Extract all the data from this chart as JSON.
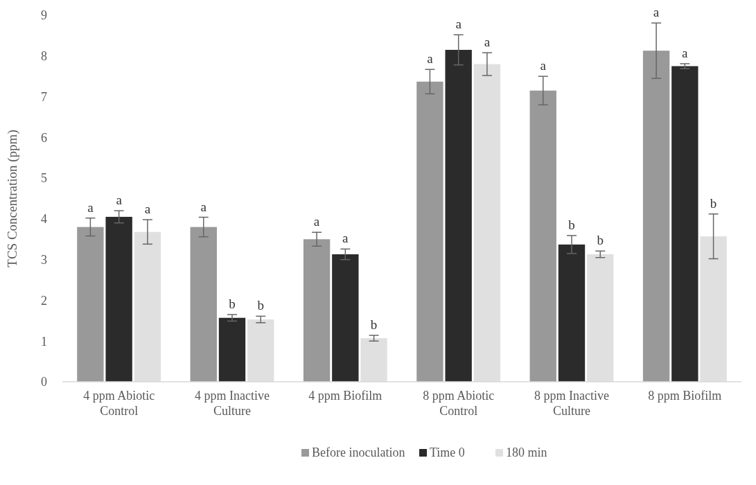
{
  "chart_data": {
    "type": "bar",
    "ylabel": "TCS Concentration (ppm)",
    "categories": [
      "4 ppm Abiotic Control",
      "4 ppm Inactive Culture",
      "4 ppm Biofilm",
      "8 ppm Abiotic Control",
      "8 ppm Inactive Culture",
      "8 ppm Biofilm"
    ],
    "series": [
      {
        "name": "Before inoculation",
        "color": "#999999",
        "values": [
          3.8,
          3.8,
          3.5,
          7.37,
          7.15,
          8.13
        ],
        "errors": [
          0.22,
          0.24,
          0.17,
          0.3,
          0.35,
          0.68
        ],
        "value_labels": [
          "a",
          "a",
          "a",
          "a",
          "a",
          "a"
        ]
      },
      {
        "name": "Time 0",
        "color": "#2b2b2b",
        "values": [
          4.05,
          1.57,
          3.13,
          8.15,
          3.37,
          7.75
        ],
        "errors": [
          0.15,
          0.08,
          0.13,
          0.37,
          0.22,
          0.06
        ],
        "value_labels": [
          "a",
          "b",
          "a",
          "a",
          "b",
          "a"
        ]
      },
      {
        "name": "180 min",
        "color": "#e0e0e0",
        "values": [
          3.68,
          1.53,
          1.07,
          7.8,
          3.13,
          3.57
        ],
        "errors": [
          0.3,
          0.08,
          0.07,
          0.28,
          0.08,
          0.55
        ],
        "value_labels": [
          "a",
          "b",
          "b",
          "a",
          "b",
          "b"
        ]
      }
    ],
    "ylim": [
      0,
      9
    ],
    "yticks": [
      0,
      1,
      2,
      3,
      4,
      5,
      6,
      7,
      8,
      9
    ],
    "grid": false,
    "legend": "bottom"
  }
}
